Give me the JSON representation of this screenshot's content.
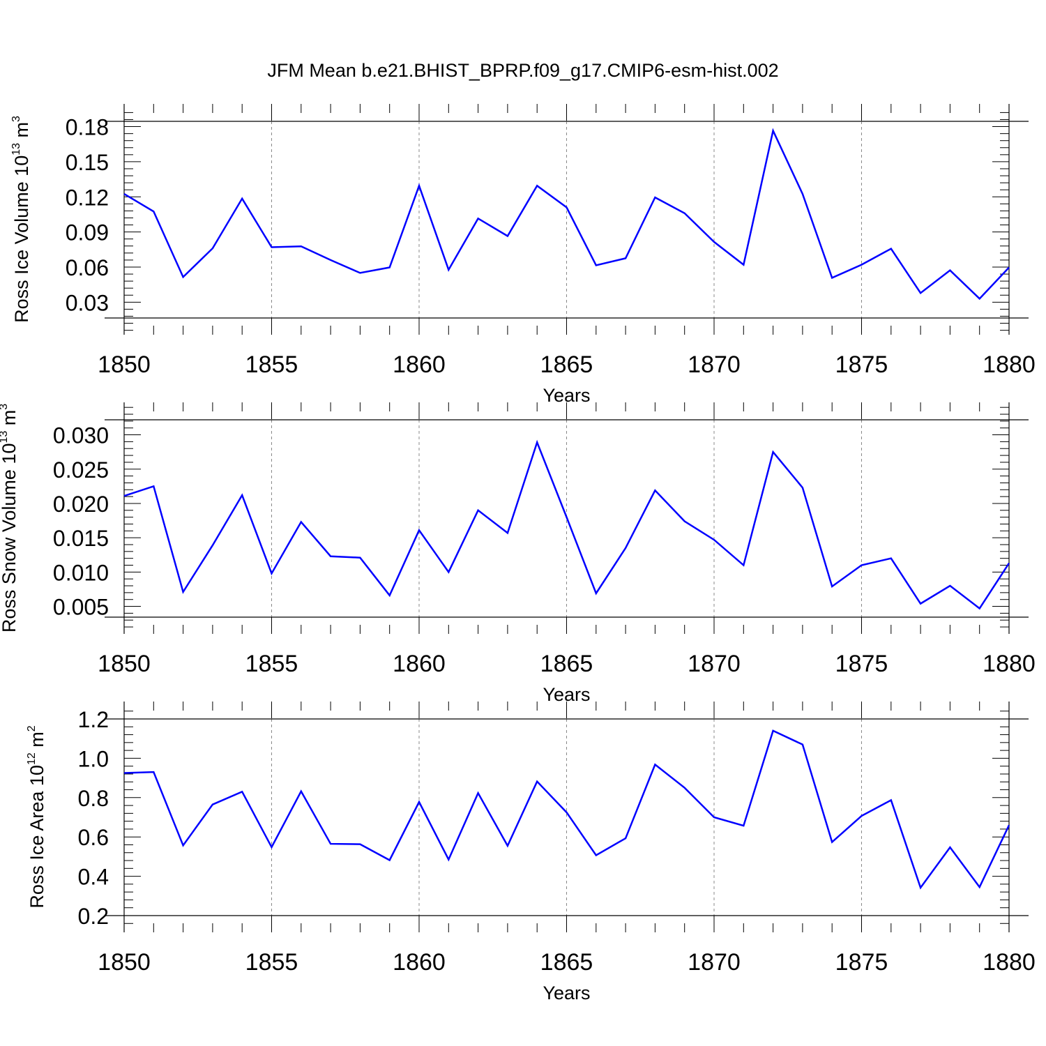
{
  "title": "JFM Mean b.e21.BHIST_BPRP.f09_g17.CMIP6-esm-hist.002",
  "line_color": "#0000ff",
  "chart_data": [
    {
      "type": "line",
      "xlabel": "Years",
      "ylabel": {
        "text": "Ross Ice Volume 10",
        "sup1": "13",
        "mid": " m",
        "sup2": "3"
      },
      "xlim": [
        1850,
        1880
      ],
      "ylim": [
        0.0165,
        0.1845
      ],
      "xticks": [
        1850,
        1855,
        1860,
        1865,
        1870,
        1875,
        1880
      ],
      "yticks": [
        0.03,
        0.06,
        0.09,
        0.12,
        0.15,
        0.18
      ],
      "ytick_labels": [
        "0.03",
        "0.06",
        "0.09",
        "0.12",
        "0.15",
        "0.18"
      ],
      "grid": "dashed vertical at major x ticks",
      "series": [
        {
          "x": [
            1850,
            1851,
            1852,
            1853,
            1854,
            1855,
            1856,
            1857,
            1858,
            1859,
            1860,
            1861,
            1862,
            1863,
            1864,
            1865,
            1866,
            1867,
            1868,
            1869,
            1870,
            1871,
            1872,
            1873,
            1874,
            1875,
            1876,
            1877,
            1878,
            1879,
            1880
          ],
          "values": [
            0.1225,
            0.1075,
            0.0515,
            0.076,
            0.1185,
            0.077,
            0.0777,
            0.066,
            0.055,
            0.0597,
            0.1295,
            0.0577,
            0.1015,
            0.0865,
            0.1295,
            0.111,
            0.0615,
            0.0675,
            0.1195,
            0.106,
            0.0815,
            0.062,
            0.1765,
            0.1225,
            0.0508,
            0.062,
            0.0757,
            0.0378,
            0.0572,
            0.033,
            0.0597
          ]
        }
      ]
    },
    {
      "type": "line",
      "xlabel": "Years",
      "ylabel": {
        "text": "Ross Snow Volume 10",
        "sup1": "13",
        "mid": " m",
        "sup2": "3"
      },
      "xlim": [
        1850,
        1880
      ],
      "ylim": [
        0.00343,
        0.03219
      ],
      "xticks": [
        1850,
        1855,
        1860,
        1865,
        1870,
        1875,
        1880
      ],
      "yticks": [
        0.005,
        0.01,
        0.015,
        0.02,
        0.025,
        0.03
      ],
      "ytick_labels": [
        "0.005",
        "0.010",
        "0.015",
        "0.020",
        "0.025",
        "0.030"
      ],
      "grid": "dashed vertical at major x ticks",
      "series": [
        {
          "x": [
            1850,
            1851,
            1852,
            1853,
            1854,
            1855,
            1856,
            1857,
            1858,
            1859,
            1860,
            1861,
            1862,
            1863,
            1864,
            1865,
            1866,
            1867,
            1868,
            1869,
            1870,
            1871,
            1872,
            1873,
            1874,
            1875,
            1876,
            1877,
            1878,
            1879,
            1880
          ],
          "values": [
            0.0211,
            0.0225,
            0.0071,
            0.0139,
            0.0212,
            0.0098,
            0.0173,
            0.0123,
            0.0121,
            0.0066,
            0.0161,
            0.01,
            0.019,
            0.0157,
            0.0289,
            0.018,
            0.0069,
            0.0135,
            0.0219,
            0.0174,
            0.0147,
            0.011,
            0.0275,
            0.0223,
            0.0079,
            0.011,
            0.012,
            0.0054,
            0.008,
            0.0047,
            0.0113
          ]
        }
      ]
    },
    {
      "type": "line",
      "xlabel": "Years",
      "ylabel": {
        "text": "Ross Ice Area 10",
        "sup1": "12",
        "mid": " m",
        "sup2": "2"
      },
      "xlim": [
        1850,
        1880
      ],
      "ylim": [
        0.2,
        1.2
      ],
      "xticks": [
        1850,
        1855,
        1860,
        1865,
        1870,
        1875,
        1880
      ],
      "yticks": [
        0.2,
        0.4,
        0.6,
        0.8,
        1.0,
        1.2
      ],
      "ytick_labels": [
        "0.2",
        "0.4",
        "0.6",
        "0.8",
        "1.0",
        "1.2"
      ],
      "grid": "dashed vertical at major x ticks",
      "series": [
        {
          "x": [
            1850,
            1851,
            1852,
            1853,
            1854,
            1855,
            1856,
            1857,
            1858,
            1859,
            1860,
            1861,
            1862,
            1863,
            1864,
            1865,
            1866,
            1867,
            1868,
            1869,
            1870,
            1871,
            1872,
            1873,
            1874,
            1875,
            1876,
            1877,
            1878,
            1879,
            1880
          ],
          "values": [
            0.925,
            0.93,
            0.557,
            0.765,
            0.83,
            0.548,
            0.832,
            0.565,
            0.563,
            0.482,
            0.778,
            0.485,
            0.823,
            0.555,
            0.882,
            0.725,
            0.507,
            0.593,
            0.968,
            0.85,
            0.7,
            0.657,
            1.14,
            1.07,
            0.574,
            0.707,
            0.787,
            0.342,
            0.547,
            0.345,
            0.66
          ]
        }
      ]
    }
  ]
}
